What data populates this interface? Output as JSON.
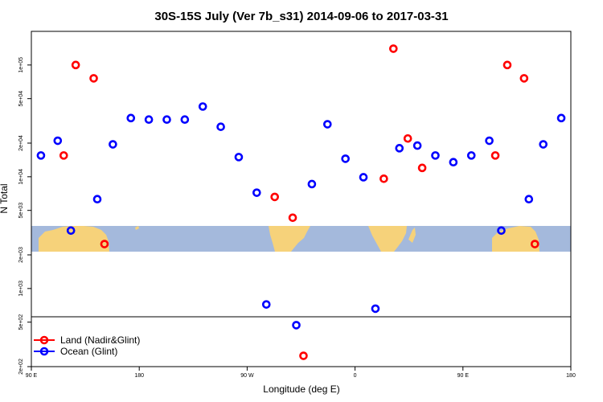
{
  "chart_data": {
    "type": "scatter",
    "title": "30S-15S July (Ver 7b_s31)   2014-09-06 to 2017-03-31",
    "xlabel": "Longitude (deg E)",
    "ylabel": "N Total",
    "x_ticks": [
      {
        "value": 90,
        "label": "90 E"
      },
      {
        "value": 180,
        "label": "180"
      },
      {
        "value": 270,
        "label": "90 W"
      },
      {
        "value": 360,
        "label": "0"
      },
      {
        "value": 450,
        "label": "90 E"
      },
      {
        "value": 540,
        "label": "180"
      }
    ],
    "y_ticks": [
      {
        "value": 200,
        "label": "2e+02"
      },
      {
        "value": 500,
        "label": "5e+02"
      },
      {
        "value": 1000,
        "label": "1e+03"
      },
      {
        "value": 2000,
        "label": "2e+03"
      },
      {
        "value": 5000,
        "label": "5e+03"
      },
      {
        "value": 10000,
        "label": "1e+04"
      },
      {
        "value": 20000,
        "label": "2e+04"
      },
      {
        "value": 50000,
        "label": "5e+04"
      },
      {
        "value": 100000,
        "label": "1e+05"
      }
    ],
    "xlim": [
      90,
      540
    ],
    "ylim": [
      200,
      200000
    ],
    "y_scale": "log",
    "legend_placement": "bottom-left",
    "map_band": {
      "lat_range": "30S-15S",
      "ocean_color": "#a4b9dc",
      "land_color": "#f6d27a"
    },
    "series": [
      {
        "name": "Land (Nadir&Glint)",
        "color": "#ff0000",
        "points": [
          {
            "x": 117,
            "y": 15500
          },
          {
            "x": 127,
            "y": 100000
          },
          {
            "x": 142,
            "y": 76000
          },
          {
            "x": 151,
            "y": 2500
          },
          {
            "x": 293,
            "y": 6600
          },
          {
            "x": 308,
            "y": 4300
          },
          {
            "x": 317,
            "y": 250
          },
          {
            "x": 384,
            "y": 9600
          },
          {
            "x": 392,
            "y": 140000
          },
          {
            "x": 404,
            "y": 22000
          },
          {
            "x": 416,
            "y": 12000
          },
          {
            "x": 477,
            "y": 15500
          },
          {
            "x": 487,
            "y": 100000
          },
          {
            "x": 501,
            "y": 76000
          },
          {
            "x": 510,
            "y": 2500
          }
        ]
      },
      {
        "name": "Ocean (Glint)",
        "color": "#0000ff",
        "points": [
          {
            "x": 98,
            "y": 15500
          },
          {
            "x": 112,
            "y": 21000
          },
          {
            "x": 123,
            "y": 3300
          },
          {
            "x": 145,
            "y": 6300
          },
          {
            "x": 158,
            "y": 19500
          },
          {
            "x": 173,
            "y": 33500
          },
          {
            "x": 188,
            "y": 32500
          },
          {
            "x": 203,
            "y": 32500
          },
          {
            "x": 218,
            "y": 32500
          },
          {
            "x": 233,
            "y": 42500
          },
          {
            "x": 248,
            "y": 28000
          },
          {
            "x": 263,
            "y": 15000
          },
          {
            "x": 278,
            "y": 7200
          },
          {
            "x": 286,
            "y": 720
          },
          {
            "x": 311,
            "y": 470
          },
          {
            "x": 324,
            "y": 8600
          },
          {
            "x": 337,
            "y": 29500
          },
          {
            "x": 352,
            "y": 14500
          },
          {
            "x": 367,
            "y": 9900
          },
          {
            "x": 377,
            "y": 660
          },
          {
            "x": 397,
            "y": 18000
          },
          {
            "x": 412,
            "y": 19000
          },
          {
            "x": 427,
            "y": 15500
          },
          {
            "x": 442,
            "y": 13500
          },
          {
            "x": 457,
            "y": 15500
          },
          {
            "x": 472,
            "y": 21000
          },
          {
            "x": 482,
            "y": 3300
          },
          {
            "x": 505,
            "y": 6300
          },
          {
            "x": 517,
            "y": 19500
          },
          {
            "x": 532,
            "y": 33500
          }
        ]
      }
    ]
  }
}
